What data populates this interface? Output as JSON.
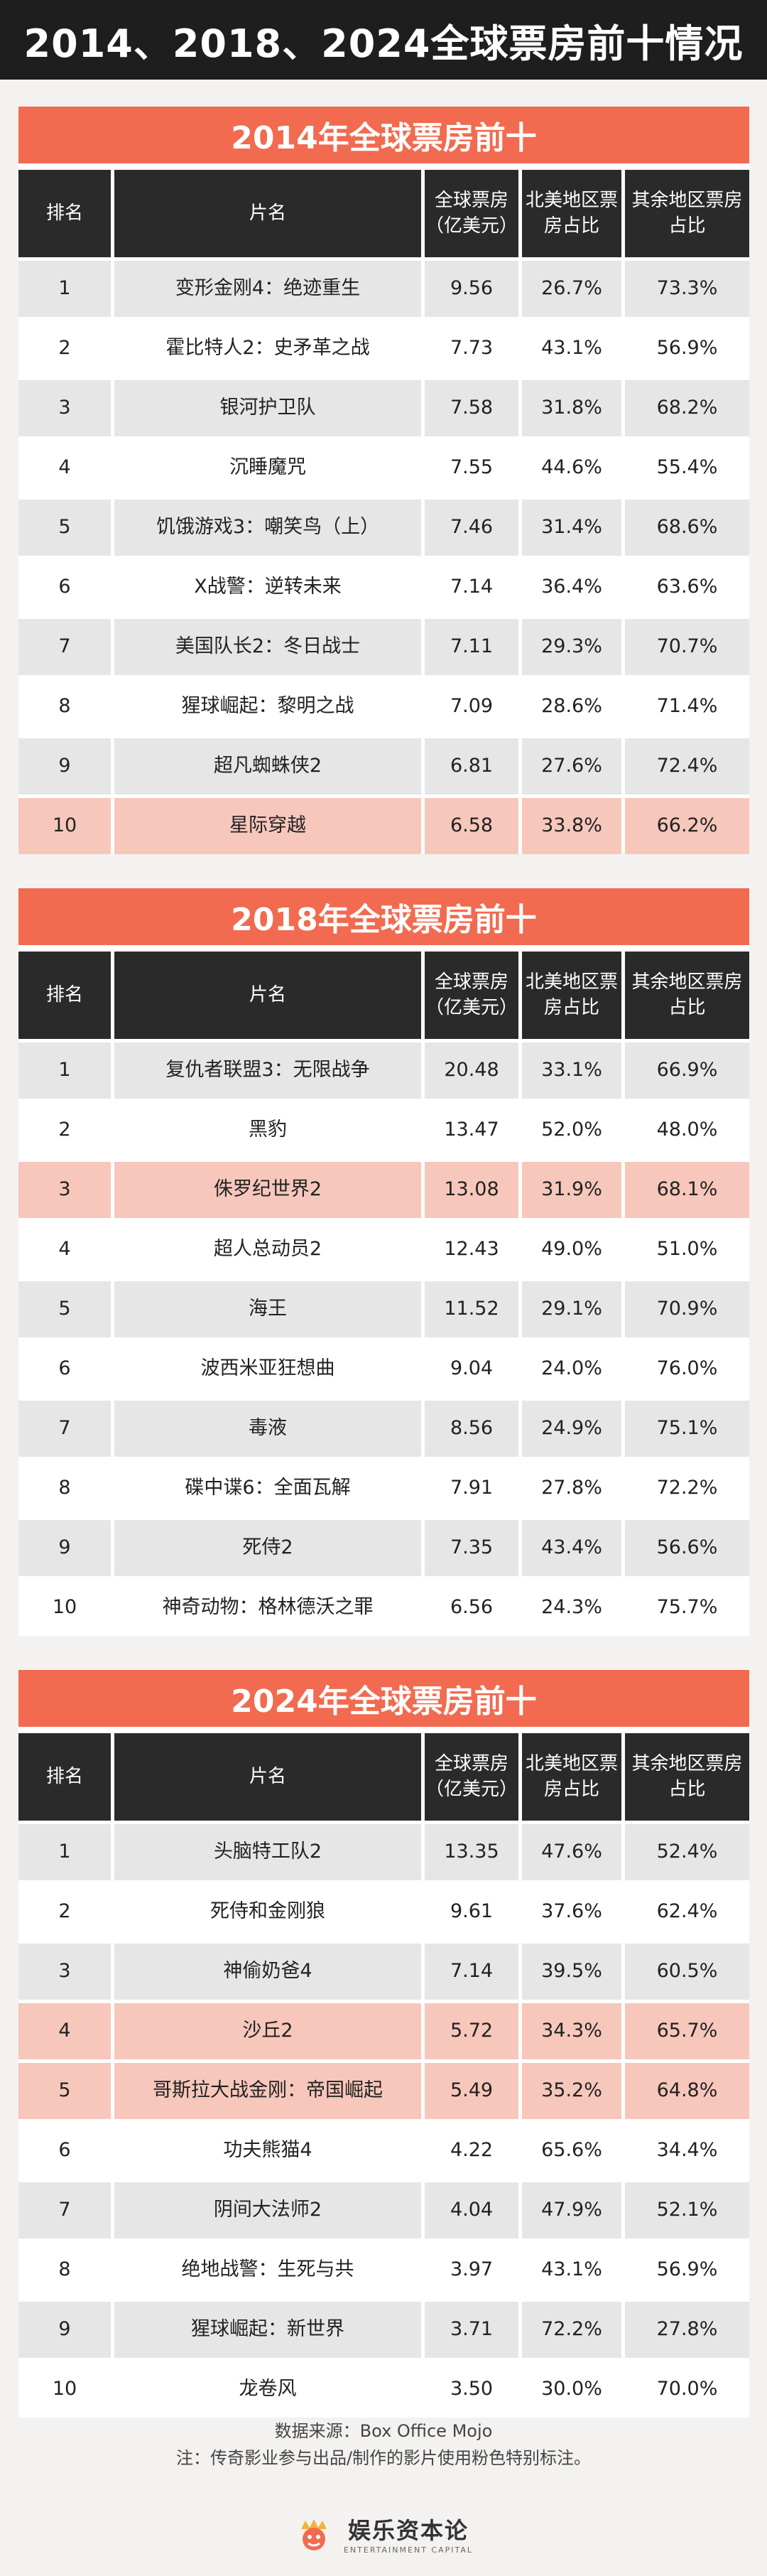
{
  "page": {
    "title": "2014、2018、2024全球票房前十情况",
    "source_line": "数据来源：Box Office Mojo",
    "note_line": "注：传奇影业参与出品/制作的影片使用粉色特别标注。",
    "logo_cn": "娱乐资本论",
    "logo_en": "ENTERTAINMENT CAPITAL"
  },
  "colors": {
    "header_bar": "#1e1e1e",
    "section_title": "#f26a4f",
    "table_header": "#2a2a2a",
    "highlight_row": "#f7c7bb",
    "row_gray": "#e6e6e6",
    "row_white": "#ffffff"
  },
  "chart_data": [
    {
      "type": "table",
      "title": "2014年全球票房前十",
      "columns": [
        "排名",
        "片名",
        "全球票房（亿美元）",
        "北美地区票房占比",
        "其余地区票房占比"
      ],
      "rows": [
        {
          "rank": "1",
          "film": "变形金刚4：绝迹重生",
          "gross": "9.56",
          "na_share": "26.7%",
          "intl_share": "73.3%",
          "highlight": false
        },
        {
          "rank": "2",
          "film": "霍比特人2：史矛革之战",
          "gross": "7.73",
          "na_share": "43.1%",
          "intl_share": "56.9%",
          "highlight": false
        },
        {
          "rank": "3",
          "film": "银河护卫队",
          "gross": "7.58",
          "na_share": "31.8%",
          "intl_share": "68.2%",
          "highlight": false
        },
        {
          "rank": "4",
          "film": "沉睡魔咒",
          "gross": "7.55",
          "na_share": "44.6%",
          "intl_share": "55.4%",
          "highlight": false
        },
        {
          "rank": "5",
          "film": "饥饿游戏3：嘲笑鸟（上）",
          "gross": "7.46",
          "na_share": "31.4%",
          "intl_share": "68.6%",
          "highlight": false
        },
        {
          "rank": "6",
          "film": "X战警：逆转未来",
          "gross": "7.14",
          "na_share": "36.4%",
          "intl_share": "63.6%",
          "highlight": false
        },
        {
          "rank": "7",
          "film": "美国队长2：冬日战士",
          "gross": "7.11",
          "na_share": "29.3%",
          "intl_share": "70.7%",
          "highlight": false
        },
        {
          "rank": "8",
          "film": "猩球崛起：黎明之战",
          "gross": "7.09",
          "na_share": "28.6%",
          "intl_share": "71.4%",
          "highlight": false
        },
        {
          "rank": "9",
          "film": "超凡蜘蛛侠2",
          "gross": "6.81",
          "na_share": "27.6%",
          "intl_share": "72.4%",
          "highlight": false
        },
        {
          "rank": "10",
          "film": "星际穿越",
          "gross": "6.58",
          "na_share": "33.8%",
          "intl_share": "66.2%",
          "highlight": true
        }
      ]
    },
    {
      "type": "table",
      "title": "2018年全球票房前十",
      "columns": [
        "排名",
        "片名",
        "全球票房（亿美元）",
        "北美地区票房占比",
        "其余地区票房占比"
      ],
      "rows": [
        {
          "rank": "1",
          "film": "复仇者联盟3：无限战争",
          "gross": "20.48",
          "na_share": "33.1%",
          "intl_share": "66.9%",
          "highlight": false
        },
        {
          "rank": "2",
          "film": "黑豹",
          "gross": "13.47",
          "na_share": "52.0%",
          "intl_share": "48.0%",
          "highlight": false
        },
        {
          "rank": "3",
          "film": "侏罗纪世界2",
          "gross": "13.08",
          "na_share": "31.9%",
          "intl_share": "68.1%",
          "highlight": true
        },
        {
          "rank": "4",
          "film": "超人总动员2",
          "gross": "12.43",
          "na_share": "49.0%",
          "intl_share": "51.0%",
          "highlight": false
        },
        {
          "rank": "5",
          "film": "海王",
          "gross": "11.52",
          "na_share": "29.1%",
          "intl_share": "70.9%",
          "highlight": false
        },
        {
          "rank": "6",
          "film": "波西米亚狂想曲",
          "gross": "9.04",
          "na_share": "24.0%",
          "intl_share": "76.0%",
          "highlight": false
        },
        {
          "rank": "7",
          "film": "毒液",
          "gross": "8.56",
          "na_share": "24.9%",
          "intl_share": "75.1%",
          "highlight": false
        },
        {
          "rank": "8",
          "film": "碟中谍6：全面瓦解",
          "gross": "7.91",
          "na_share": "27.8%",
          "intl_share": "72.2%",
          "highlight": false
        },
        {
          "rank": "9",
          "film": "死侍2",
          "gross": "7.35",
          "na_share": "43.4%",
          "intl_share": "56.6%",
          "highlight": false
        },
        {
          "rank": "10",
          "film": "神奇动物：格林德沃之罪",
          "gross": "6.56",
          "na_share": "24.3%",
          "intl_share": "75.7%",
          "highlight": false
        }
      ]
    },
    {
      "type": "table",
      "title": "2024年全球票房前十",
      "columns": [
        "排名",
        "片名",
        "全球票房（亿美元）",
        "北美地区票房占比",
        "其余地区票房占比"
      ],
      "rows": [
        {
          "rank": "1",
          "film": "头脑特工队2",
          "gross": "13.35",
          "na_share": "47.6%",
          "intl_share": "52.4%",
          "highlight": false
        },
        {
          "rank": "2",
          "film": "死侍和金刚狼",
          "gross": "9.61",
          "na_share": "37.6%",
          "intl_share": "62.4%",
          "highlight": false
        },
        {
          "rank": "3",
          "film": "神偷奶爸4",
          "gross": "7.14",
          "na_share": "39.5%",
          "intl_share": "60.5%",
          "highlight": false
        },
        {
          "rank": "4",
          "film": "沙丘2",
          "gross": "5.72",
          "na_share": "34.3%",
          "intl_share": "65.7%",
          "highlight": true
        },
        {
          "rank": "5",
          "film": "哥斯拉大战金刚：帝国崛起",
          "gross": "5.49",
          "na_share": "35.2%",
          "intl_share": "64.8%",
          "highlight": true
        },
        {
          "rank": "6",
          "film": "功夫熊猫4",
          "gross": "4.22",
          "na_share": "65.6%",
          "intl_share": "34.4%",
          "highlight": false
        },
        {
          "rank": "7",
          "film": "阴间大法师2",
          "gross": "4.04",
          "na_share": "47.9%",
          "intl_share": "52.1%",
          "highlight": false
        },
        {
          "rank": "8",
          "film": "绝地战警：生死与共",
          "gross": "3.97",
          "na_share": "43.1%",
          "intl_share": "56.9%",
          "highlight": false
        },
        {
          "rank": "9",
          "film": "猩球崛起：新世界",
          "gross": "3.71",
          "na_share": "72.2%",
          "intl_share": "27.8%",
          "highlight": false
        },
        {
          "rank": "10",
          "film": "龙卷风",
          "gross": "3.50",
          "na_share": "30.0%",
          "intl_share": "70.0%",
          "highlight": false
        }
      ]
    }
  ]
}
